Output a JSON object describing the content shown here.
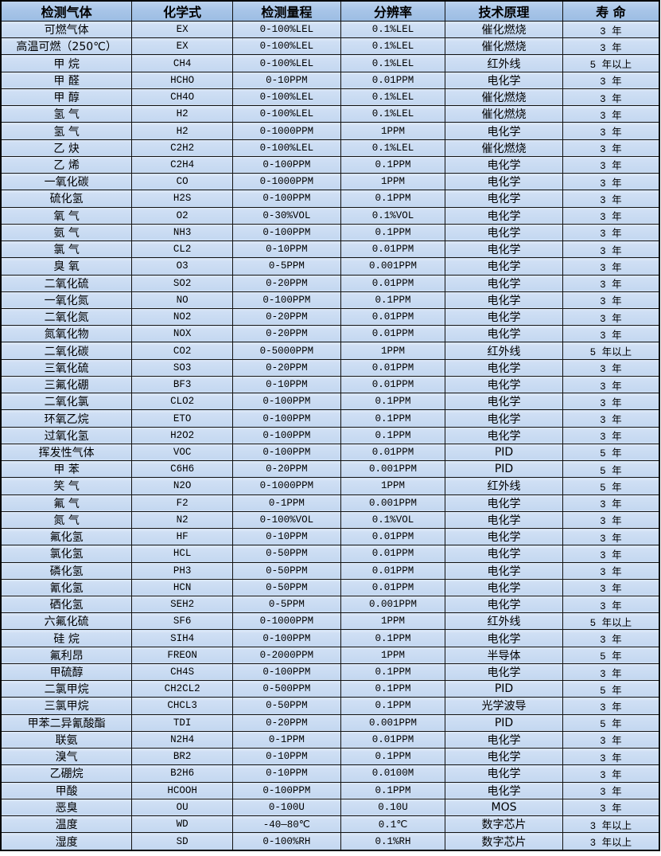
{
  "table": {
    "columns": [
      {
        "key": "gas",
        "label": "检测气体"
      },
      {
        "key": "formula",
        "label": "化学式"
      },
      {
        "key": "range",
        "label": "检测量程"
      },
      {
        "key": "resolution",
        "label": "分辨率"
      },
      {
        "key": "principle",
        "label": "技术原理"
      },
      {
        "key": "life",
        "label": "寿 命"
      }
    ],
    "rows": [
      {
        "gas": "可燃气体",
        "formula": "EX",
        "range": "0-100%LEL",
        "resolution": "0.1%LEL",
        "principle": "催化燃烧",
        "life": "3 年"
      },
      {
        "gas": "高温可燃（250℃）",
        "formula": "EX",
        "range": "0-100%LEL",
        "resolution": "0.1%LEL",
        "principle": "催化燃烧",
        "life": "3 年"
      },
      {
        "gas": "甲 烷",
        "formula": "CH4",
        "range": "0-100%LEL",
        "resolution": "0.1%LEL",
        "principle": "红外线",
        "life": "5 年以上"
      },
      {
        "gas": "甲 醛",
        "formula": "HCHO",
        "range": "0-10PPM",
        "resolution": "0.01PPM",
        "principle": "电化学",
        "life": "3 年"
      },
      {
        "gas": "甲 醇",
        "formula": "CH4O",
        "range": "0-100%LEL",
        "resolution": "0.1%LEL",
        "principle": "催化燃烧",
        "life": "3 年"
      },
      {
        "gas": "氢 气",
        "formula": "H2",
        "range": "0-100%LEL",
        "resolution": "0.1%LEL",
        "principle": "催化燃烧",
        "life": "3 年"
      },
      {
        "gas": "氢 气",
        "formula": "H2",
        "range": "0-1000PPM",
        "resolution": "1PPM",
        "principle": "电化学",
        "life": "3 年"
      },
      {
        "gas": "乙 炔",
        "formula": "C2H2",
        "range": "0-100%LEL",
        "resolution": "0.1%LEL",
        "principle": "催化燃烧",
        "life": "3 年"
      },
      {
        "gas": "乙 烯",
        "formula": "C2H4",
        "range": "0-100PPM",
        "resolution": "0.1PPM",
        "principle": "电化学",
        "life": "3 年"
      },
      {
        "gas": "一氧化碳",
        "formula": "CO",
        "range": "0-1000PPM",
        "resolution": "1PPM",
        "principle": "电化学",
        "life": "3 年"
      },
      {
        "gas": "硫化氢",
        "formula": "H2S",
        "range": "0-100PPM",
        "resolution": "0.1PPM",
        "principle": "电化学",
        "life": "3 年"
      },
      {
        "gas": "氧 气",
        "formula": "O2",
        "range": "0-30%VOL",
        "resolution": "0.1%VOL",
        "principle": "电化学",
        "life": "3 年"
      },
      {
        "gas": "氨 气",
        "formula": "NH3",
        "range": "0-100PPM",
        "resolution": "0.1PPM",
        "principle": "电化学",
        "life": "3 年"
      },
      {
        "gas": "氯 气",
        "formula": "CL2",
        "range": "0-10PPM",
        "resolution": "0.01PPM",
        "principle": "电化学",
        "life": "3 年"
      },
      {
        "gas": "臭 氧",
        "formula": "O3",
        "range": "0-5PPM",
        "resolution": "0.001PPM",
        "principle": "电化学",
        "life": "3 年"
      },
      {
        "gas": "二氧化硫",
        "formula": "SO2",
        "range": "0-20PPM",
        "resolution": "0.01PPM",
        "principle": "电化学",
        "life": "3 年"
      },
      {
        "gas": "一氧化氮",
        "formula": "NO",
        "range": "0-100PPM",
        "resolution": "0.1PPM",
        "principle": "电化学",
        "life": "3 年"
      },
      {
        "gas": "二氧化氮",
        "formula": "NO2",
        "range": "0-20PPM",
        "resolution": "0.01PPM",
        "principle": "电化学",
        "life": "3 年"
      },
      {
        "gas": "氮氧化物",
        "formula": "NOX",
        "range": "0-20PPM",
        "resolution": "0.01PPM",
        "principle": "电化学",
        "life": "3 年"
      },
      {
        "gas": "二氧化碳",
        "formula": "CO2",
        "range": "0-5000PPM",
        "resolution": "1PPM",
        "principle": "红外线",
        "life": "5 年以上"
      },
      {
        "gas": "三氧化硫",
        "formula": "SO3",
        "range": "0-20PPM",
        "resolution": "0.01PPM",
        "principle": "电化学",
        "life": "3 年"
      },
      {
        "gas": "三氟化硼",
        "formula": "BF3",
        "range": "0-10PPM",
        "resolution": "0.01PPM",
        "principle": "电化学",
        "life": "3 年"
      },
      {
        "gas": "二氧化氯",
        "formula": "CLO2",
        "range": "0-100PPM",
        "resolution": "0.1PPM",
        "principle": "电化学",
        "life": "3 年"
      },
      {
        "gas": "环氧乙烷",
        "formula": "ETO",
        "range": "0-100PPM",
        "resolution": "0.1PPM",
        "principle": "电化学",
        "life": "3 年"
      },
      {
        "gas": "过氧化氢",
        "formula": "H2O2",
        "range": "0-100PPM",
        "resolution": "0.1PPM",
        "principle": "电化学",
        "life": "3 年"
      },
      {
        "gas": "挥发性气体",
        "formula": "VOC",
        "range": "0-100PPM",
        "resolution": "0.01PPM",
        "principle": "PID",
        "life": "5 年"
      },
      {
        "gas": "甲 苯",
        "formula": "C6H6",
        "range": "0-20PPM",
        "resolution": "0.001PPM",
        "principle": "PID",
        "life": "5 年"
      },
      {
        "gas": "笑 气",
        "formula": "N2O",
        "range": "0-1000PPM",
        "resolution": "1PPM",
        "principle": "红外线",
        "life": "5 年"
      },
      {
        "gas": "氟 气",
        "formula": "F2",
        "range": "0-1PPM",
        "resolution": "0.001PPM",
        "principle": "电化学",
        "life": "3 年"
      },
      {
        "gas": "氮 气",
        "formula": "N2",
        "range": "0-100%VOL",
        "resolution": "0.1%VOL",
        "principle": "电化学",
        "life": "3 年"
      },
      {
        "gas": "氟化氢",
        "formula": "HF",
        "range": "0-10PPM",
        "resolution": "0.01PPM",
        "principle": "电化学",
        "life": "3 年"
      },
      {
        "gas": "氯化氢",
        "formula": "HCL",
        "range": "0-50PPM",
        "resolution": "0.01PPM",
        "principle": "电化学",
        "life": "3 年"
      },
      {
        "gas": "磷化氢",
        "formula": "PH3",
        "range": "0-50PPM",
        "resolution": "0.01PPM",
        "principle": "电化学",
        "life": "3 年"
      },
      {
        "gas": "氰化氢",
        "formula": "HCN",
        "range": "0-50PPM",
        "resolution": "0.01PPM",
        "principle": "电化学",
        "life": "3 年"
      },
      {
        "gas": "硒化氢",
        "formula": "SEH2",
        "range": "0-5PPM",
        "resolution": "0.001PPM",
        "principle": "电化学",
        "life": "3 年"
      },
      {
        "gas": "六氟化硫",
        "formula": "SF6",
        "range": "0-1000PPM",
        "resolution": "1PPM",
        "principle": "红外线",
        "life": "5 年以上"
      },
      {
        "gas": "硅 烷",
        "formula": "SIH4",
        "range": "0-100PPM",
        "resolution": "0.1PPM",
        "principle": "电化学",
        "life": "3 年"
      },
      {
        "gas": "氟利昂",
        "formula": "FREON",
        "range": "0-2000PPM",
        "resolution": "1PPM",
        "principle": "半导体",
        "life": "5 年"
      },
      {
        "gas": "甲硫醇",
        "formula": "CH4S",
        "range": "0-100PPM",
        "resolution": "0.1PPM",
        "principle": "电化学",
        "life": "3 年"
      },
      {
        "gas": "二氯甲烷",
        "formula": "CH2CL2",
        "range": "0-500PPM",
        "resolution": "0.1PPM",
        "principle": "PID",
        "life": "5 年"
      },
      {
        "gas": "三氯甲烷",
        "formula": "CHCL3",
        "range": "0-50PPM",
        "resolution": "0.1PPM",
        "principle": "光学波导",
        "life": "3 年"
      },
      {
        "gas": "甲苯二异氰酸酯",
        "formula": "TDI",
        "range": "0-20PPM",
        "resolution": "0.001PPM",
        "principle": "PID",
        "life": "5 年"
      },
      {
        "gas": "联氨",
        "formula": "N2H4",
        "range": "0-1PPM",
        "resolution": "0.01PPM",
        "principle": "电化学",
        "life": "3 年"
      },
      {
        "gas": "溴气",
        "formula": "BR2",
        "range": "0-10PPM",
        "resolution": "0.1PPM",
        "principle": "电化学",
        "life": "3 年"
      },
      {
        "gas": "乙硼烷",
        "formula": "B2H6",
        "range": "0-10PPM",
        "resolution": "0.0100M",
        "principle": "电化学",
        "life": "3 年"
      },
      {
        "gas": "甲酸",
        "formula": "HCOOH",
        "range": "0-100PPM",
        "resolution": "0.1PPM",
        "principle": "电化学",
        "life": "3 年"
      },
      {
        "gas": "恶臭",
        "formula": "OU",
        "range": "0-100U",
        "resolution": "0.10U",
        "principle": "MOS",
        "life": "3 年"
      },
      {
        "gas": "温度",
        "formula": "WD",
        "range": "-40—80℃",
        "resolution": "0.1℃",
        "principle": "数字芯片",
        "life": "3 年以上"
      },
      {
        "gas": "湿度",
        "formula": "SD",
        "range": "0-100%RH",
        "resolution": "0.1%RH",
        "principle": "数字芯片",
        "life": "3 年以上"
      }
    ]
  }
}
